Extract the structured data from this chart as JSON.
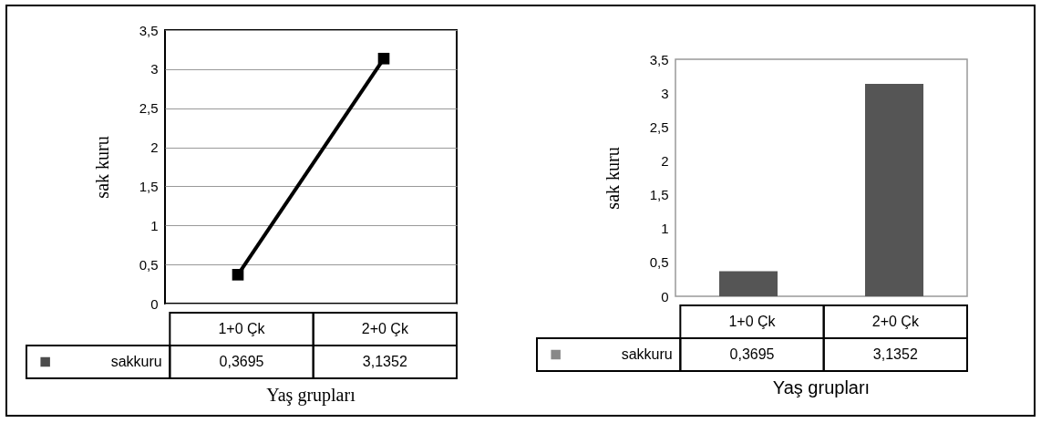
{
  "chart_data": [
    {
      "type": "line",
      "ylabel": "sak kuru",
      "xlabel": "Yaş grupları",
      "categories": [
        "1+0 Çk",
        "2+0 Çk"
      ],
      "series": [
        {
          "name": "sakkuru",
          "color": "#000000",
          "values": [
            0.3695,
            3.1352
          ],
          "value_labels": [
            "0,3695",
            "3,1352"
          ]
        }
      ],
      "ylim": [
        0,
        3.5
      ],
      "yticks": [
        0,
        {
          "value": 0.5,
          "label": "0,5"
        },
        1,
        {
          "value": 1.5,
          "label": "1,5"
        },
        2,
        {
          "value": 2.5,
          "label": "2,5"
        },
        3,
        {
          "value": 3.5,
          "label": "3,5"
        }
      ],
      "grid": "y",
      "marker": "square",
      "legend": "bottom"
    },
    {
      "type": "bar",
      "ylabel": "sak kuru",
      "xlabel": "Yaş grupları",
      "categories": [
        "1+0 Çk",
        "2+0 Çk"
      ],
      "series": [
        {
          "name": "sakkuru",
          "color": "#555555",
          "values": [
            0.3695,
            3.1352
          ],
          "value_labels": [
            "0,3695",
            "3,1352"
          ]
        }
      ],
      "ylim": [
        0,
        3.5
      ],
      "yticks": [
        0,
        {
          "value": 0.5,
          "label": "0,5"
        },
        1,
        {
          "value": 1.5,
          "label": "1,5"
        },
        2,
        {
          "value": 2.5,
          "label": "2,5"
        },
        3,
        {
          "value": 3.5,
          "label": "3,5"
        }
      ],
      "legend": "bottom"
    }
  ]
}
